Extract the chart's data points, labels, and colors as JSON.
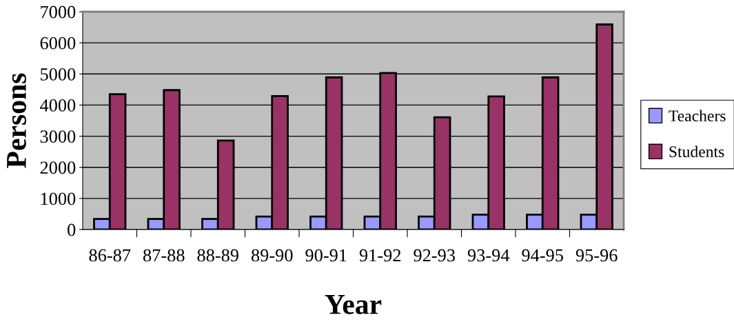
{
  "chart_data": {
    "type": "bar",
    "xlabel": "Year",
    "ylabel": "Persons",
    "categories": [
      "86-87",
      "87-88",
      "88-89",
      "89-90",
      "90-91",
      "91-92",
      "92-93",
      "93-94",
      "94-95",
      "95-96"
    ],
    "series": [
      {
        "name": "Teachers",
        "color": "#9999ff",
        "values": [
          340,
          340,
          340,
          420,
          420,
          420,
          420,
          480,
          480,
          480
        ]
      },
      {
        "name": "Students",
        "color": "#993366",
        "values": [
          4350,
          4480,
          2860,
          4290,
          4890,
          5030,
          3610,
          4280,
          4890,
          6590
        ]
      }
    ],
    "ylim": [
      0,
      7000
    ],
    "yticks": [
      0,
      1000,
      2000,
      3000,
      4000,
      5000,
      6000,
      7000
    ],
    "grid": "y",
    "legend": "right"
  }
}
